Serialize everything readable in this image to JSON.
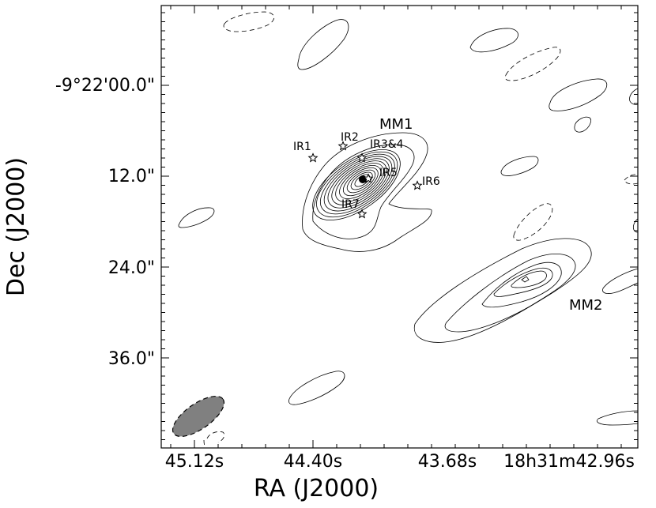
{
  "chart_data": {
    "type": "contour",
    "title": "",
    "xlabel": "RA (J2000)",
    "ylabel": "Dec (J2000)",
    "x_ticks": [
      "45.12s",
      "44.40s",
      "43.68s",
      "18h31m42.96s"
    ],
    "y_ticks": [
      "-9°22'00.0\"",
      "12.0\"",
      "24.0\"",
      "36.0\""
    ],
    "regions": [
      {
        "label": "MM1"
      },
      {
        "label": "MM2"
      }
    ],
    "sources": [
      {
        "label": "IR1"
      },
      {
        "label": "IR2"
      },
      {
        "label": "IR3&4"
      },
      {
        "label": "IR5"
      },
      {
        "label": "IR6"
      },
      {
        "label": "IR7"
      }
    ],
    "contour_levels_mm1": 12,
    "contour_levels_mm2": 5,
    "beam": {
      "fill_color": "#808080",
      "edge": "dashed"
    },
    "colors": {
      "contour": "#000000",
      "beam": "#808080",
      "background": "#ffffff"
    }
  }
}
